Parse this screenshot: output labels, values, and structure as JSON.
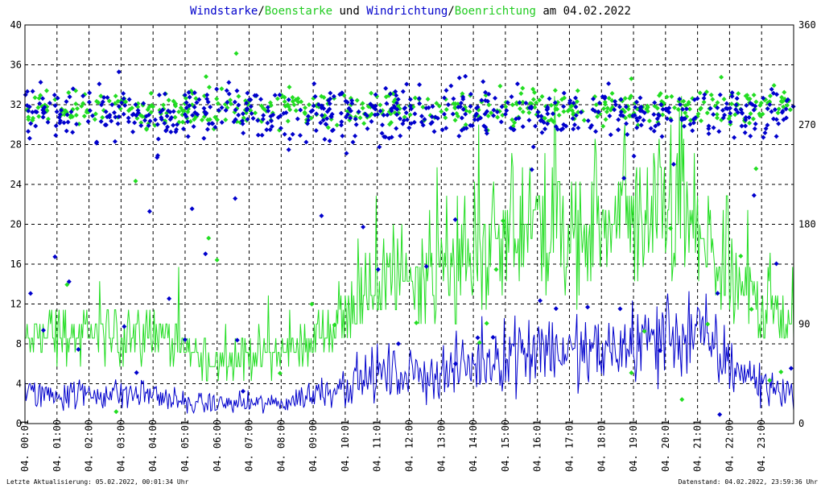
{
  "chart_data": {
    "type": "line",
    "title_parts": [
      {
        "text": "Windstarke",
        "color": "#0000cc"
      },
      {
        "text": "/",
        "color": "#000000"
      },
      {
        "text": "Boenstarke",
        "color": "#22cc22"
      },
      {
        "text": " und ",
        "color": "#000000"
      },
      {
        "text": "Windrichtung",
        "color": "#0000cc"
      },
      {
        "text": "/",
        "color": "#000000"
      },
      {
        "text": "Boenrichtung",
        "color": "#22cc22"
      },
      {
        "text": " am 04.02.2022",
        "color": "#000000"
      }
    ],
    "y_left": {
      "min": 0,
      "max": 40,
      "ticks": [
        "0",
        "4",
        "8",
        "12",
        "16",
        "20",
        "24",
        "28",
        "32",
        "36",
        "40"
      ]
    },
    "y_right": {
      "min": 0,
      "max": 360,
      "ticks": [
        "0",
        "90",
        "180",
        "270",
        "360"
      ]
    },
    "x_ticks": [
      "04. 00:01",
      "04. 01:00",
      "04. 02:00",
      "04. 03:00",
      "04. 04:00",
      "04. 05:01",
      "04. 06:00",
      "04. 07:00",
      "04. 08:00",
      "04. 09:00",
      "04. 10:01",
      "04. 11:01",
      "04. 12:00",
      "04. 13:00",
      "04. 14:00",
      "04. 15:00",
      "04. 16:01",
      "04. 17:01",
      "04. 18:01",
      "04. 19:01",
      "04. 20:01",
      "04. 21:01",
      "04. 22:00",
      "04. 23:00"
    ],
    "x_range_hours": [
      0,
      24
    ],
    "grid": true,
    "colors": {
      "wind": "#0000cc",
      "gust": "#22dd22"
    },
    "series": [
      {
        "key": "wind_speed",
        "axis": "left",
        "kind": "line",
        "color": "#0000cc",
        "profile_hours": [
          0,
          1,
          2,
          3,
          4,
          5,
          6,
          7,
          8,
          9,
          10,
          11,
          12,
          13,
          14,
          15,
          16,
          17,
          18,
          19,
          20,
          21,
          22,
          23,
          24
        ],
        "profile_values": [
          3,
          3,
          3,
          3,
          3,
          2,
          2,
          2,
          2,
          3,
          4,
          5,
          5,
          5,
          6,
          7,
          8,
          7,
          7,
          8,
          9,
          9,
          6,
          4,
          3
        ]
      },
      {
        "key": "gust_speed",
        "axis": "left",
        "kind": "line",
        "color": "#22dd22",
        "profile_hours": [
          0,
          1,
          2,
          3,
          4,
          5,
          6,
          7,
          8,
          9,
          10,
          11,
          12,
          13,
          14,
          15,
          16,
          17,
          18,
          19,
          20,
          21,
          22,
          23,
          24
        ],
        "profile_values": [
          8,
          9,
          8,
          9,
          9,
          7,
          6,
          7,
          7,
          8,
          11,
          14,
          15,
          15,
          16,
          18,
          20,
          18,
          19,
          20,
          21,
          19,
          14,
          12,
          10
        ]
      },
      {
        "key": "wind_direction",
        "axis": "right",
        "kind": "scatter",
        "color": "#0000cc",
        "center_deg": 280,
        "spread_deg": 35
      },
      {
        "key": "gust_direction",
        "axis": "right",
        "kind": "scatter",
        "color": "#22dd22",
        "center_deg": 285,
        "spread_deg": 25
      }
    ]
  },
  "footer": {
    "left": "Letzte Aktualisierung: 05.02.2022, 00:01:34 Uhr",
    "right": "Datenstand: 04.02.2022, 23:59:36 Uhr"
  }
}
